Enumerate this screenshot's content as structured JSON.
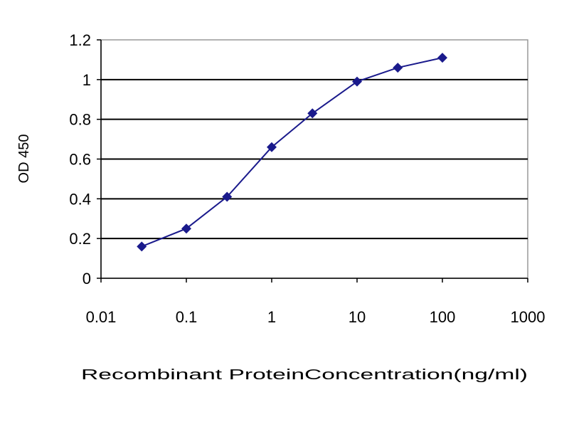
{
  "chart_data": {
    "type": "line",
    "title": "",
    "xlabel": "Recombinant ProteinConcentration(ng/ml)",
    "ylabel": "OD 450",
    "xscale": "log",
    "xlim": [
      0.01,
      1000
    ],
    "ylim": [
      0,
      1.2
    ],
    "xticks": [
      "0.01",
      "0.1",
      "1",
      "10",
      "100",
      "1000"
    ],
    "yticks": [
      "0",
      "0.2",
      "0.4",
      "0.6",
      "0.8",
      "1",
      "1.2"
    ],
    "grid": "horizontal",
    "legend": "none",
    "series": [
      {
        "x": [
          0.03,
          0.1,
          0.3,
          1,
          3,
          10,
          30,
          100
        ],
        "y": [
          0.16,
          0.25,
          0.41,
          0.66,
          0.83,
          0.99,
          1.06,
          1.11
        ],
        "color": "#1a1a8c",
        "marker": "diamond"
      }
    ]
  }
}
